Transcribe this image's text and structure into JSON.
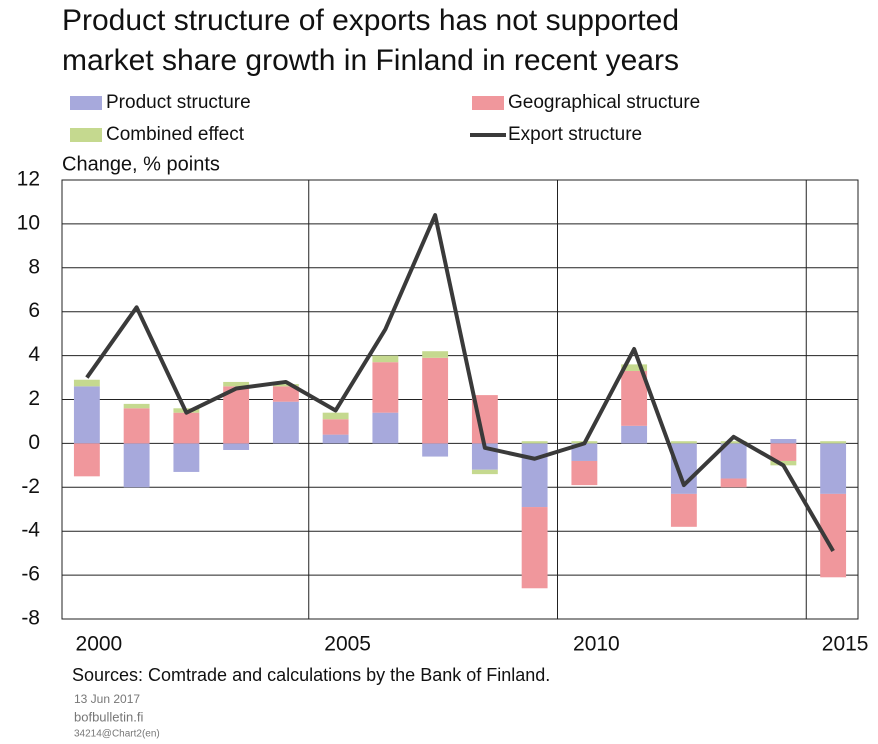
{
  "chart_data": {
    "type": "bar",
    "title": [
      "Product structure of exports has not supported",
      "market share growth in Finland in recent years"
    ],
    "y_label": "Change, % points",
    "categories": [
      "2000",
      null,
      null,
      null,
      null,
      "2005",
      null,
      null,
      null,
      null,
      "2010",
      null,
      null,
      null,
      null,
      "2015"
    ],
    "series": [
      {
        "name": "Product structure",
        "type": "bar",
        "color": "#a7a9dc",
        "values": [
          2.6,
          -2.0,
          -1.3,
          -0.3,
          1.9,
          0.4,
          1.4,
          -0.6,
          -1.2,
          -2.9,
          -0.8,
          0.8,
          -2.3,
          -1.6,
          0.2,
          -2.3
        ]
      },
      {
        "name": "Geographical structure",
        "type": "bar",
        "color": "#f0979c",
        "values": [
          -1.5,
          1.6,
          1.4,
          2.6,
          0.7,
          0.7,
          2.3,
          3.9,
          2.2,
          -3.7,
          -1.1,
          2.5,
          -1.5,
          -0.4,
          -0.8,
          -3.8
        ]
      },
      {
        "name": "Combined effect",
        "type": "bar",
        "color": "#c5d98f",
        "values": [
          0.3,
          0.2,
          0.2,
          0.2,
          0.1,
          0.3,
          0.3,
          0.3,
          -0.2,
          0.1,
          0.1,
          0.3,
          0.1,
          0.1,
          -0.2,
          0.1
        ]
      },
      {
        "name": "Export structure",
        "type": "line",
        "color": "#3a3a3a",
        "values": [
          3.0,
          6.2,
          1.4,
          2.5,
          2.8,
          1.5,
          5.2,
          10.4,
          -0.2,
          -0.7,
          0.0,
          4.3,
          -1.9,
          0.3,
          -1.0,
          -4.9
        ]
      }
    ],
    "ylim": [
      -8,
      12
    ],
    "yticks": [
      -8,
      -6,
      -4,
      -2,
      0,
      2,
      4,
      6,
      8,
      10,
      12
    ],
    "grid": true,
    "source": "Sources: Comtrade and calculations by the Bank of Finland.",
    "date": "13 Jun 2017",
    "site": "bofbulletin.fi",
    "code": "34214@Chart2(en)"
  }
}
